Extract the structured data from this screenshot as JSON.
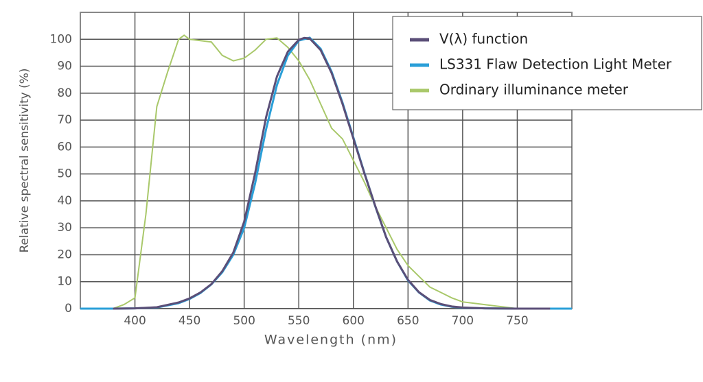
{
  "chart_data": {
    "type": "line",
    "xlabel": "Wavelength (nm)",
    "ylabel": "Relative spectral sensitivity (%)",
    "xlim": [
      350,
      800
    ],
    "xticks": [
      400,
      450,
      500,
      550,
      600,
      650,
      700,
      750
    ],
    "ylim": [
      0,
      110
    ],
    "yticks": [
      0,
      10,
      20,
      30,
      40,
      50,
      60,
      70,
      80,
      90,
      100
    ],
    "grid": true,
    "legend": "upper right",
    "series": [
      {
        "name": "V(λ) function",
        "color": "#5b4f78",
        "x": [
          380,
          400,
          420,
          440,
          450,
          460,
          470,
          480,
          490,
          500,
          510,
          520,
          530,
          540,
          550,
          555,
          560,
          570,
          580,
          590,
          600,
          610,
          620,
          630,
          640,
          650,
          660,
          670,
          680,
          690,
          700,
          720,
          750,
          780
        ],
        "values": [
          0,
          0.1,
          0.5,
          2.3,
          3.8,
          6,
          9.1,
          13.9,
          20.8,
          32.3,
          50.3,
          71,
          86.2,
          95.4,
          99.8,
          100.5,
          100.3,
          96,
          87.5,
          76,
          63.1,
          50.3,
          38.1,
          26.5,
          17.5,
          10.7,
          6.1,
          3.2,
          1.7,
          0.8,
          0.4,
          0.1,
          0,
          0
        ]
      },
      {
        "name": "LS331 Flaw Detection Light Meter",
        "color": "#2a9fd8",
        "x": [
          350,
          380,
          400,
          420,
          440,
          450,
          460,
          470,
          480,
          490,
          500,
          510,
          520,
          530,
          540,
          550,
          560,
          570,
          580,
          590,
          600,
          610,
          620,
          630,
          640,
          650,
          660,
          670,
          680,
          690,
          700,
          720,
          750,
          800
        ],
        "values": [
          0,
          0,
          0.1,
          0.4,
          2,
          3.6,
          5.8,
          9,
          13.5,
          20,
          30,
          46.5,
          66.5,
          83,
          94,
          99.5,
          100.6,
          96.5,
          88,
          76.5,
          63.5,
          50.5,
          38,
          26.5,
          17.5,
          10.5,
          6,
          3,
          1.5,
          0.7,
          0.3,
          0.1,
          0,
          0
        ]
      },
      {
        "name": "Ordinary illuminance meter",
        "color": "#a9c86a",
        "x": [
          380,
          390,
          400,
          410,
          420,
          430,
          440,
          445,
          450,
          460,
          470,
          480,
          490,
          500,
          510,
          520,
          530,
          540,
          550,
          560,
          570,
          580,
          590,
          600,
          610,
          620,
          630,
          640,
          650,
          660,
          670,
          680,
          690,
          700,
          710,
          720,
          730,
          740,
          750,
          760
        ],
        "values": [
          0,
          1.5,
          4,
          35,
          75,
          88,
          100,
          101.5,
          100,
          99.5,
          99,
          94,
          92,
          93,
          96,
          100,
          100.5,
          97,
          92,
          85,
          76,
          67,
          63,
          55,
          47,
          38,
          30,
          22,
          16,
          12,
          8,
          6,
          4,
          2.5,
          2,
          1.5,
          1,
          0.5,
          0,
          0
        ]
      }
    ]
  }
}
